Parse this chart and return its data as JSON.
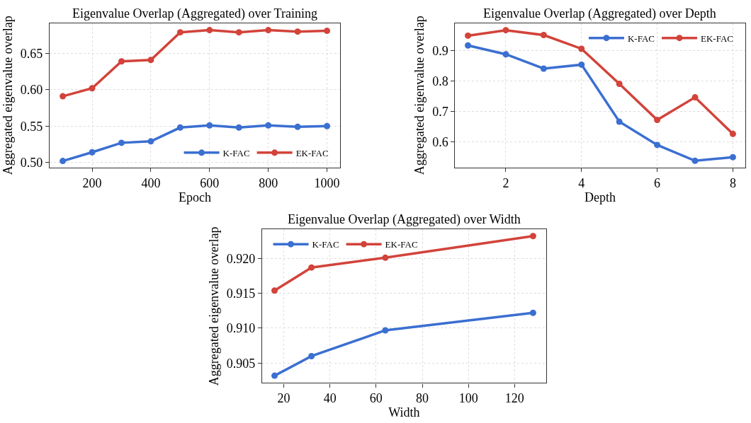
{
  "chart_data": [
    {
      "type": "line",
      "title": "Eigenvalue Overlap (Aggregated) over Training",
      "xlabel": "Epoch",
      "ylabel": "Aggregated eigenvalue overlap",
      "x": [
        100,
        200,
        300,
        400,
        500,
        600,
        700,
        800,
        900,
        1000
      ],
      "series": [
        {
          "name": "K-FAC",
          "color": "#3b6fd1",
          "values": [
            0.502,
            0.514,
            0.527,
            0.529,
            0.548,
            0.551,
            0.548,
            0.551,
            0.549,
            0.55
          ]
        },
        {
          "name": "EK-FAC",
          "color": "#d2433a",
          "values": [
            0.591,
            0.602,
            0.639,
            0.641,
            0.679,
            0.682,
            0.679,
            0.682,
            0.68,
            0.681
          ]
        }
      ],
      "xlim": [
        55,
        1045
      ],
      "ylim": [
        0.493,
        0.6916
      ],
      "xticks": [
        200,
        400,
        600,
        800,
        1000
      ],
      "yticks": [
        {
          "value": 0.5,
          "label": "0.50"
        },
        {
          "value": 0.55,
          "label": "0.55"
        },
        {
          "value": 0.6,
          "label": "0.60"
        },
        {
          "value": 0.65,
          "label": "0.65"
        }
      ],
      "grid": true,
      "legend": "bottom right",
      "marker": "circle",
      "line_style": "solid"
    },
    {
      "type": "line",
      "title": "Eigenvalue Overlap (Aggregated) over Depth",
      "xlabel": "Depth",
      "ylabel": "Aggregated eigenvalue overlap",
      "x": [
        1,
        2,
        3,
        4,
        5,
        6,
        7,
        8
      ],
      "series": [
        {
          "name": "K-FAC",
          "color": "#3b6fd1",
          "values": [
            0.917,
            0.888,
            0.841,
            0.854,
            0.667,
            0.591,
            0.539,
            0.551
          ]
        },
        {
          "name": "EK-FAC",
          "color": "#d2433a",
          "values": [
            0.949,
            0.967,
            0.951,
            0.906,
            0.791,
            0.673,
            0.747,
            0.627
          ]
        }
      ],
      "xlim": [
        0.66,
        8.32
      ],
      "ylim": [
        0.517,
        0.99
      ],
      "xticks": [
        2,
        4,
        6,
        8
      ],
      "yticks": [
        0.6,
        0.7,
        0.8,
        0.9
      ],
      "grid": true,
      "legend": "top right",
      "marker": "circle",
      "line_style": "solid"
    },
    {
      "type": "line",
      "title": "Eigenvalue Overlap (Aggregated) over Width",
      "xlabel": "Width",
      "ylabel": "Aggregated eigenvalue overlap",
      "x": [
        16,
        32,
        64,
        128
      ],
      "series": [
        {
          "name": "K-FAC",
          "color": "#3b6fd1",
          "values": [
            0.9032,
            0.906,
            0.9097,
            0.9122
          ]
        },
        {
          "name": "EK-FAC",
          "color": "#d2433a",
          "values": [
            0.9154,
            0.9187,
            0.9201,
            0.9232
          ]
        }
      ],
      "xlim": [
        10.6,
        133.6
      ],
      "ylim": [
        0.90215,
        0.92416
      ],
      "xticks": [
        20,
        40,
        60,
        80,
        100,
        120
      ],
      "yticks": [
        {
          "value": 0.905,
          "label": "0.905"
        },
        {
          "value": 0.91,
          "label": "0.910"
        },
        {
          "value": 0.915,
          "label": "0.915"
        },
        {
          "value": 0.92,
          "label": "0.920"
        }
      ],
      "grid": true,
      "legend": "top left",
      "marker": "circle",
      "line_style": "solid"
    }
  ]
}
